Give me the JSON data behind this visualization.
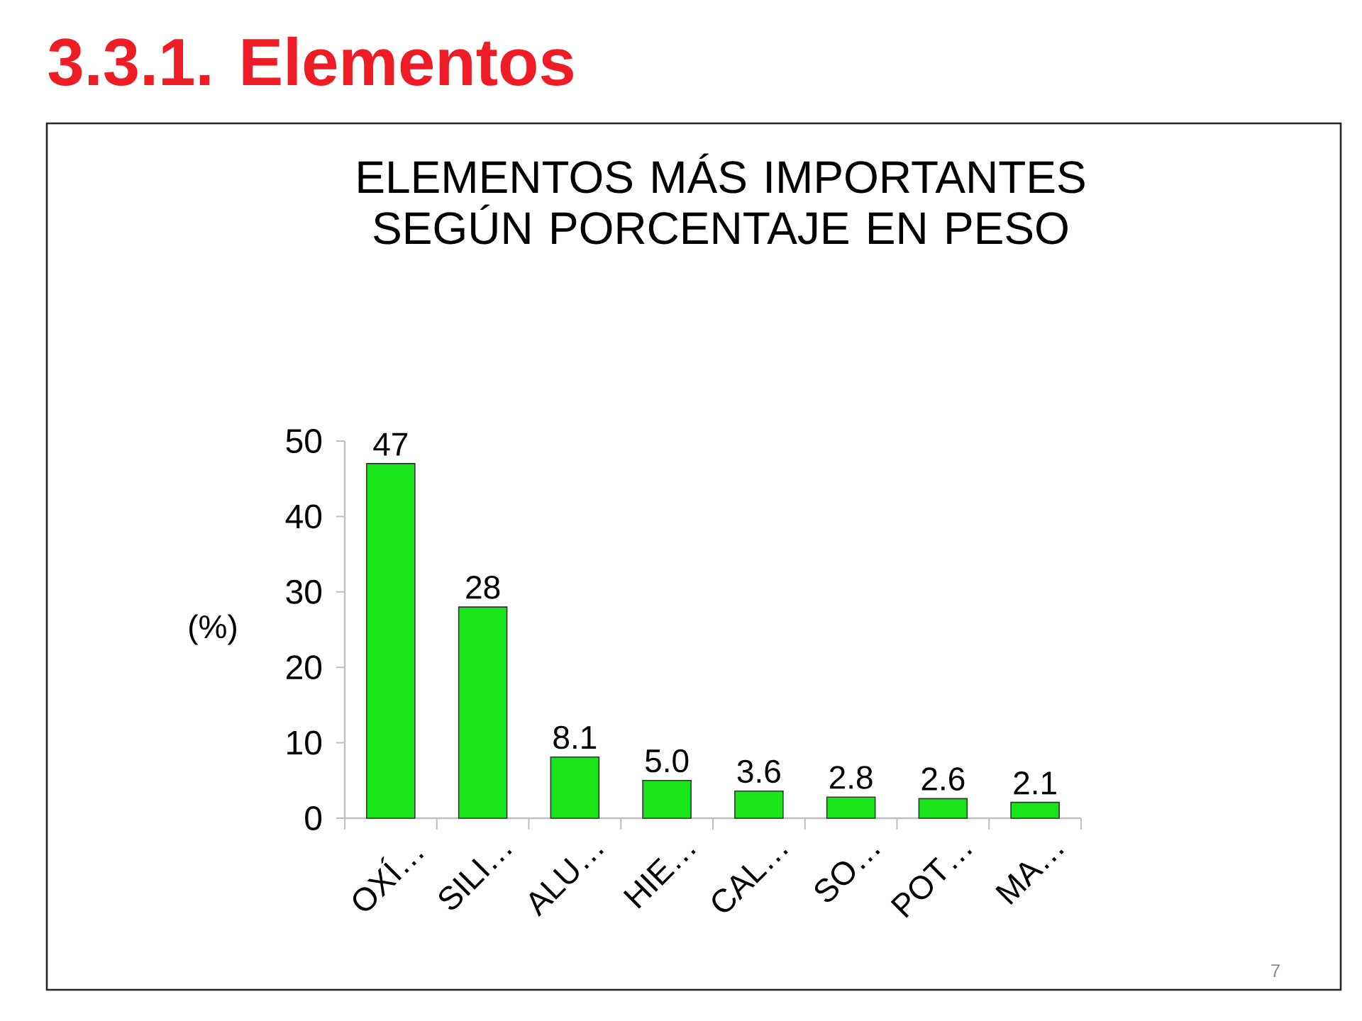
{
  "chart_data": {
    "type": "bar",
    "title": "3.3.1. Elementos",
    "subtitle": "ELEMENTOS MÁS IMPORTANTES SEGÚN PORCENTAJE EN PESO",
    "ylabel": "(%)",
    "categories": [
      "OXÍ…",
      "SILI…",
      "ALU…",
      "HIE…",
      "CAL…",
      "SO…",
      "POT…",
      "MA…"
    ],
    "values": [
      47,
      28,
      8.1,
      5.0,
      3.6,
      2.8,
      2.6,
      2.1
    ],
    "value_labels": [
      "47",
      "28",
      "8.1",
      "5.0",
      "3.6",
      "2.8",
      "2.6",
      "2.1"
    ],
    "color": "#19e619",
    "ylim": [
      0,
      50
    ],
    "yticks": [
      0,
      10,
      20,
      30,
      40,
      50
    ],
    "annotations": [
      "7"
    ]
  }
}
